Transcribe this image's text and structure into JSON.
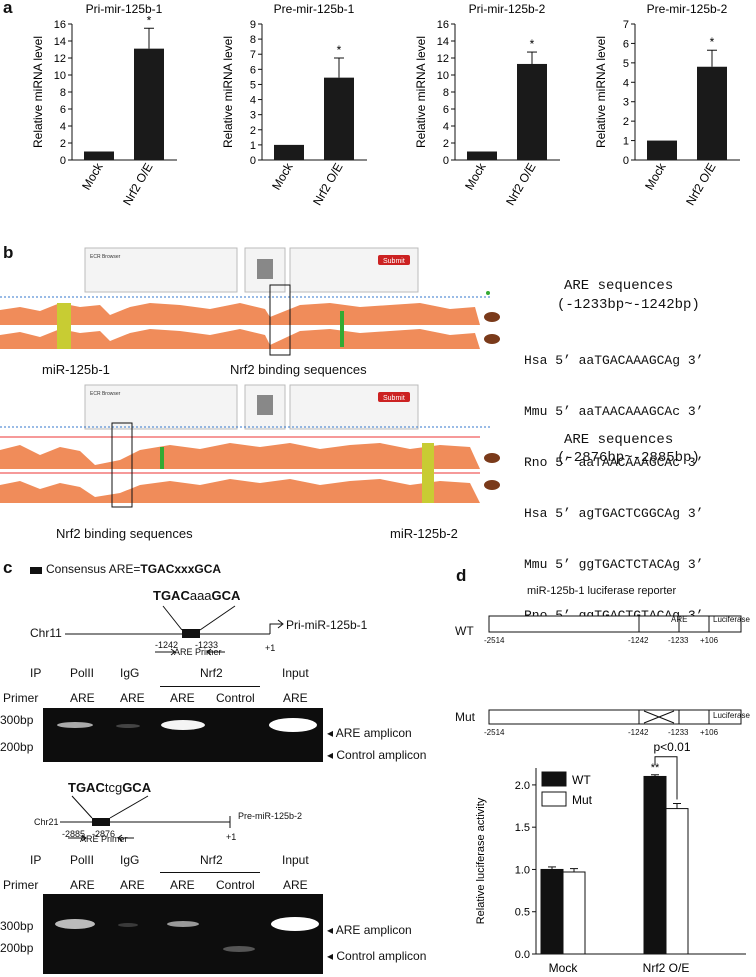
{
  "panel_a": {
    "letter": "a",
    "ylabel": "Relative miRNA level",
    "charts": [
      {
        "title": "Pri-mir-125b-1",
        "yticks": [
          0,
          2,
          4,
          6,
          8,
          10,
          12,
          14,
          16
        ],
        "ymax": 16,
        "values": [
          1,
          13.1
        ],
        "errors": [
          0,
          2.4
        ],
        "sig": "*"
      },
      {
        "title": "Pre-mir-125b-1",
        "yticks": [
          0,
          1,
          2,
          3,
          4,
          5,
          6,
          7,
          8,
          9
        ],
        "ymax": 9,
        "values": [
          1,
          5.45
        ],
        "errors": [
          0,
          1.3
        ],
        "sig": "*"
      },
      {
        "title": "Pri-mir-125b-2",
        "yticks": [
          0,
          2,
          4,
          6,
          8,
          10,
          12,
          14,
          16
        ],
        "ymax": 16,
        "values": [
          1,
          11.3
        ],
        "errors": [
          0,
          1.4
        ],
        "sig": "*"
      },
      {
        "title": "Pre-mir-125b-2",
        "yticks": [
          0,
          1,
          2,
          3,
          4,
          5,
          6,
          7
        ],
        "ymax": 7,
        "values": [
          1,
          4.8
        ],
        "errors": [
          0,
          0.85
        ],
        "sig": "*"
      }
    ],
    "categories": [
      "Mock",
      "Nrf2 O/E"
    ]
  },
  "panel_b": {
    "letter": "b",
    "top": {
      "browser_title": "ECR Browser",
      "submit": "Submit",
      "left_label": "miR-125b-1",
      "mid_label": "Nrf2 binding sequences",
      "are_title": "ARE sequences",
      "are_range": "(-1233bp~-1242bp)",
      "rows": [
        {
          "sp": "Hsa",
          "seq": "5’ aaTGACAAAGCAg 3’"
        },
        {
          "sp": "Mmu",
          "seq": "5’ aaTAACAAAGCAc 3’"
        },
        {
          "sp": "Rno",
          "seq": "5’ aaTAACAAAGCAc 3’"
        }
      ]
    },
    "bottom": {
      "browser_title": "ECR Browser",
      "submit": "Submit",
      "left_label": "Nrf2 binding sequences",
      "right_label": "miR-125b-2",
      "are_title": "ARE sequences",
      "are_range": "(-2876bp~-2885bp)",
      "rows": [
        {
          "sp": "Hsa",
          "seq": "5’ agTGACTCGGCAg 3’"
        },
        {
          "sp": "Mmu",
          "seq": "5’ ggTGACTCTACAg 3’"
        },
        {
          "sp": "Rno",
          "seq": "5’ ggTGACTGTACAg 3’"
        }
      ]
    }
  },
  "panel_c": {
    "letter": "c",
    "legend_prefix": "Consensus ARE=",
    "legend_seq": "TGACxxxGCA",
    "gene1": {
      "motif_bold1": "TGAC",
      "motif_lower": "aaa",
      "motif_bold2": "GCA",
      "chr": "Chr11",
      "target": "Pri-miR-125b-1",
      "pos1": "-1242",
      "pos2": "-1233",
      "plus1": "+1",
      "primer": "ARE Primer"
    },
    "gene2": {
      "motif_bold1": "TGAC",
      "motif_lower": "tcg",
      "motif_bold2": "GCA",
      "chr": "Chr21",
      "target": "Pre-miR-125b-2",
      "pos1": "-2885",
      "pos2": "-2876",
      "plus1": "+1",
      "primer": "ARE Primer"
    },
    "ip_label": "IP",
    "primer_label": "Primer",
    "ip_groups": [
      "PolII",
      "IgG",
      "Nrf2",
      "Input"
    ],
    "primers": [
      "ARE",
      "ARE",
      "ARE",
      "Control",
      "ARE"
    ],
    "ladder": [
      "300bp",
      "200bp"
    ],
    "amplicons": [
      "ARE amplicon",
      "Control amplicon"
    ]
  },
  "panel_d": {
    "letter": "d",
    "reporter_title": "miR-125b-1 luciferase reporter",
    "wt": "WT",
    "mut": "Mut",
    "are_box": "ARE",
    "luc_box": "Luciferase",
    "positions": [
      "-2514",
      "-1242",
      "-1233",
      "+106"
    ],
    "pval": "p<0.01",
    "chart_data": {
      "type": "bar",
      "categories": [
        "Mock",
        "Nrf2 O/E"
      ],
      "series": [
        {
          "name": "WT",
          "values": [
            1.0,
            2.1
          ],
          "errors": [
            0.03,
            0.02
          ],
          "color": "#111111"
        },
        {
          "name": "Mut",
          "values": [
            0.97,
            1.72
          ],
          "errors": [
            0.04,
            0.06
          ],
          "color": "#ffffff"
        }
      ],
      "ylabel": "Relative luciferase activity",
      "yticks": [
        "0.0",
        "0.5",
        "1.0",
        "1.5",
        "2.0"
      ],
      "ylim": [
        0,
        2.2
      ],
      "sig": "**"
    }
  }
}
